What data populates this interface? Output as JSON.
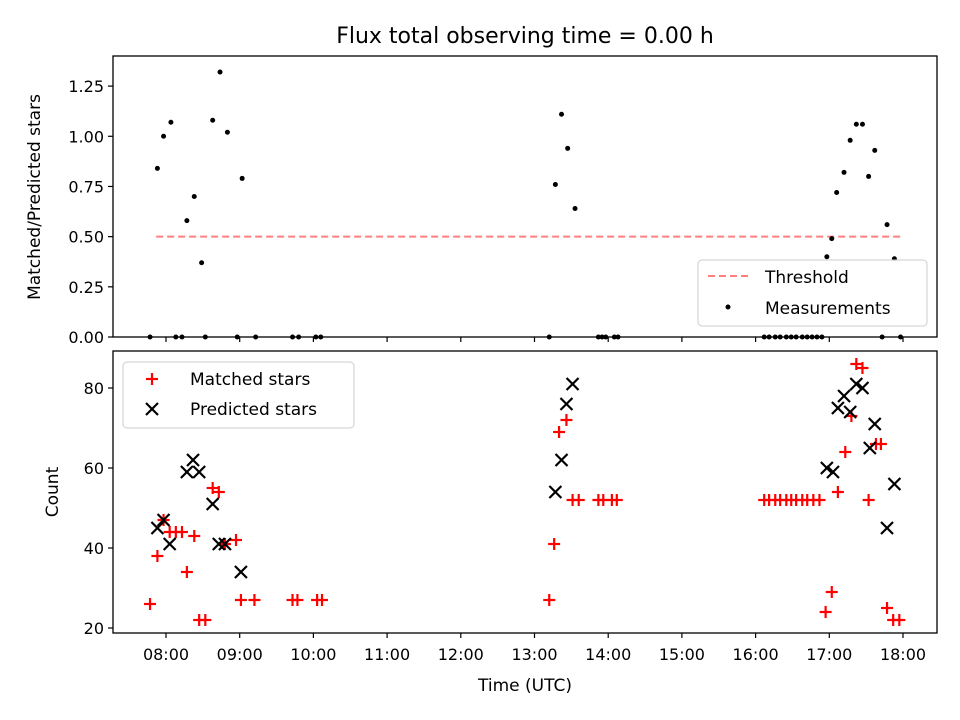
{
  "title": "Flux total observing time = 0.00 h",
  "chart_data": [
    {
      "type": "scatter",
      "ylabel": "Matched/Predicted stars",
      "ylim": [
        0,
        1.4
      ],
      "yticks": [
        "0.00",
        "0.25",
        "0.50",
        "0.75",
        "1.00",
        "1.25"
      ],
      "legend_position": "lower-right",
      "threshold": {
        "name": "Threshold",
        "value": 0.5,
        "x_start": "07:52",
        "x_end": "17:58",
        "color": "#ff7f7f"
      },
      "series": [
        {
          "name": "Measurements",
          "color": "#000000",
          "points": [
            [
              "07:47",
              0.0
            ],
            [
              "07:53",
              0.84
            ],
            [
              "07:58",
              1.0
            ],
            [
              "08:04",
              1.07
            ],
            [
              "08:08",
              0.0
            ],
            [
              "08:13",
              0.0
            ],
            [
              "08:17",
              0.58
            ],
            [
              "08:23",
              0.7
            ],
            [
              "08:29",
              0.37
            ],
            [
              "08:32",
              0.0
            ],
            [
              "08:38",
              1.08
            ],
            [
              "08:44",
              1.32
            ],
            [
              "08:50",
              1.02
            ],
            [
              "08:58",
              0.0
            ],
            [
              "09:02",
              0.79
            ],
            [
              "09:13",
              0.0
            ],
            [
              "09:43",
              0.0
            ],
            [
              "09:48",
              0.0
            ],
            [
              "10:02",
              0.0
            ],
            [
              "10:06",
              0.0
            ],
            [
              "13:12",
              0.0
            ],
            [
              "13:17",
              0.76
            ],
            [
              "13:22",
              1.11
            ],
            [
              "13:27",
              0.94
            ],
            [
              "13:33",
              0.64
            ],
            [
              "13:52",
              0.0
            ],
            [
              "13:55",
              0.0
            ],
            [
              "13:58",
              0.0
            ],
            [
              "14:05",
              0.0
            ],
            [
              "14:08",
              0.0
            ],
            [
              "16:07",
              0.0
            ],
            [
              "16:11",
              0.0
            ],
            [
              "16:16",
              0.0
            ],
            [
              "16:20",
              0.0
            ],
            [
              "16:25",
              0.0
            ],
            [
              "16:29",
              0.0
            ],
            [
              "16:33",
              0.0
            ],
            [
              "16:38",
              0.0
            ],
            [
              "16:42",
              0.0
            ],
            [
              "16:46",
              0.0
            ],
            [
              "16:50",
              0.0
            ],
            [
              "16:54",
              0.0
            ],
            [
              "16:58",
              0.4
            ],
            [
              "17:02",
              0.49
            ],
            [
              "17:06",
              0.72
            ],
            [
              "17:12",
              0.82
            ],
            [
              "17:17",
              0.98
            ],
            [
              "17:22",
              1.06
            ],
            [
              "17:27",
              1.06
            ],
            [
              "17:32",
              0.8
            ],
            [
              "17:37",
              0.93
            ],
            [
              "17:43",
              0.0
            ],
            [
              "17:47",
              0.56
            ],
            [
              "17:53",
              0.39
            ],
            [
              "17:58",
              0.0
            ]
          ]
        }
      ]
    },
    {
      "type": "scatter",
      "xlabel": "Time (UTC)",
      "ylabel": "Count",
      "ylim": [
        19,
        88
      ],
      "yticks": [
        "20",
        "40",
        "60",
        "80"
      ],
      "xticks": [
        "08:00",
        "09:00",
        "10:00",
        "11:00",
        "12:00",
        "13:00",
        "14:00",
        "15:00",
        "16:00",
        "17:00",
        "18:00"
      ],
      "legend_position": "upper-left",
      "series": [
        {
          "name": "Matched stars",
          "marker": "+",
          "color": "#ff0000",
          "points": [
            [
              "07:47",
              26
            ],
            [
              "07:53",
              38
            ],
            [
              "07:58",
              47
            ],
            [
              "08:03",
              44
            ],
            [
              "08:08",
              44
            ],
            [
              "08:13",
              44
            ],
            [
              "08:17",
              34
            ],
            [
              "08:23",
              43
            ],
            [
              "08:27",
              22
            ],
            [
              "08:32",
              22
            ],
            [
              "08:38",
              55
            ],
            [
              "08:43",
              54
            ],
            [
              "08:48",
              41
            ],
            [
              "08:57",
              42
            ],
            [
              "09:01",
              27
            ],
            [
              "09:12",
              27
            ],
            [
              "09:43",
              27
            ],
            [
              "09:47",
              27
            ],
            [
              "10:03",
              27
            ],
            [
              "10:07",
              27
            ],
            [
              "13:12",
              27
            ],
            [
              "13:16",
              41
            ],
            [
              "13:20",
              69
            ],
            [
              "13:26",
              72
            ],
            [
              "13:31",
              52
            ],
            [
              "13:36",
              52
            ],
            [
              "13:52",
              52
            ],
            [
              "13:56",
              52
            ],
            [
              "14:03",
              52
            ],
            [
              "14:07",
              52
            ],
            [
              "16:07",
              52
            ],
            [
              "16:11",
              52
            ],
            [
              "16:16",
              52
            ],
            [
              "16:20",
              52
            ],
            [
              "16:25",
              52
            ],
            [
              "16:29",
              52
            ],
            [
              "16:33",
              52
            ],
            [
              "16:38",
              52
            ],
            [
              "16:42",
              52
            ],
            [
              "16:47",
              52
            ],
            [
              "16:52",
              52
            ],
            [
              "16:57",
              24
            ],
            [
              "17:02",
              29
            ],
            [
              "17:07",
              54
            ],
            [
              "17:13",
              64
            ],
            [
              "17:18",
              73
            ],
            [
              "17:22",
              86
            ],
            [
              "17:27",
              85
            ],
            [
              "17:32",
              52
            ],
            [
              "17:38",
              66
            ],
            [
              "17:42",
              66
            ],
            [
              "17:47",
              25
            ],
            [
              "17:52",
              22
            ],
            [
              "17:57",
              22
            ]
          ]
        },
        {
          "name": "Predicted stars",
          "marker": "x",
          "color": "#000000",
          "points": [
            [
              "07:53",
              45
            ],
            [
              "07:58",
              47
            ],
            [
              "08:03",
              41
            ],
            [
              "08:17",
              59
            ],
            [
              "08:22",
              62
            ],
            [
              "08:27",
              59
            ],
            [
              "08:38",
              51
            ],
            [
              "08:43",
              41
            ],
            [
              "08:48",
              41
            ],
            [
              "09:01",
              34
            ],
            [
              "13:17",
              54
            ],
            [
              "13:22",
              62
            ],
            [
              "13:26",
              76
            ],
            [
              "13:31",
              81
            ],
            [
              "16:58",
              60
            ],
            [
              "17:03",
              59
            ],
            [
              "17:07",
              75
            ],
            [
              "17:12",
              78
            ],
            [
              "17:17",
              74
            ],
            [
              "17:22",
              81
            ],
            [
              "17:27",
              80
            ],
            [
              "17:33",
              65
            ],
            [
              "17:37",
              71
            ],
            [
              "17:47",
              45
            ],
            [
              "17:53",
              56
            ]
          ]
        }
      ]
    }
  ]
}
